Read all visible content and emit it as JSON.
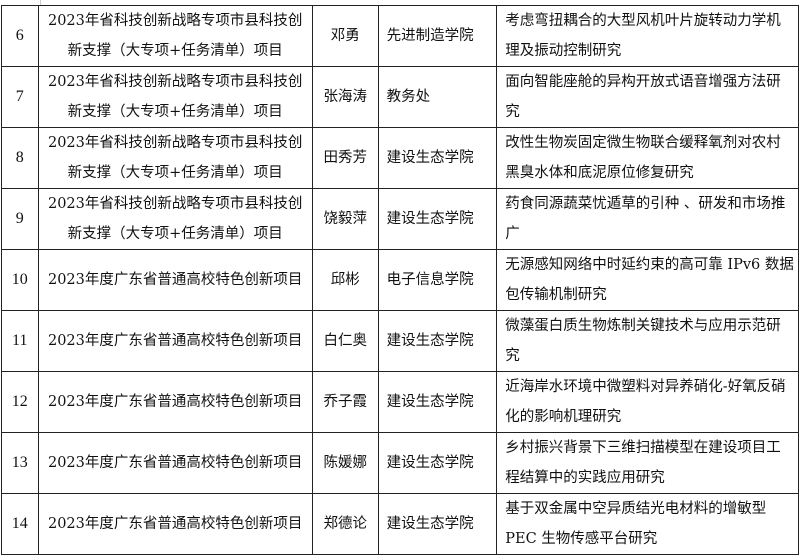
{
  "rows": [
    {
      "no": "6",
      "project": "2023年省科技创新战略专项市县科技创新支撑（大专项+任务清单）项目",
      "name": "邓勇",
      "college": "先进制造学院",
      "topic": "考虑弯扭耦合的大型风机叶片旋转动力学机理及振动控制研究"
    },
    {
      "no": "7",
      "project": "2023年省科技创新战略专项市县科技创新支撑（大专项+任务清单）项目",
      "name": "张海涛",
      "college": "教务处",
      "topic": "面向智能座舱的异构开放式语音增强方法研究"
    },
    {
      "no": "8",
      "project": "2023年省科技创新战略专项市县科技创新支撑（大专项+任务清单）项目",
      "name": "田秀芳",
      "college": "建设生态学院",
      "topic": "改性生物炭固定微生物联合缓释氧剂对农村黑臭水体和底泥原位修复研究"
    },
    {
      "no": "9",
      "project": "2023年省科技创新战略专项市县科技创新支撑（大专项+任务清单）项目",
      "name": "饶毅萍",
      "college": "建设生态学院",
      "topic": "药食同源蔬菜忧遁草的引种 、研发和市场推广"
    },
    {
      "no": "10",
      "project": "2023年度广东省普通高校特色创新项目",
      "name": "邱彬",
      "college": "电子信息学院",
      "topic": "无源感知网络中时延约束的高可靠 IPv6 数据包传输机制研究"
    },
    {
      "no": "11",
      "project": "2023年度广东省普通高校特色创新项目",
      "name": "白仁奥",
      "college": "建设生态学院",
      "topic": "微藻蛋白质生物炼制关键技术与应用示范研究"
    },
    {
      "no": "12",
      "project": "2023年度广东省普通高校特色创新项目",
      "name": "乔子霞",
      "college": "建设生态学院",
      "topic": "近海岸水环境中微塑料对异养硝化-好氧反硝化的影响机理研究"
    },
    {
      "no": "13",
      "project": "2023年度广东省普通高校特色创新项目",
      "name": "陈媛娜",
      "college": "建设生态学院",
      "topic": "乡村振兴背景下三维扫描模型在建设项目工程结算中的实践应用研究"
    },
    {
      "no": "14",
      "project": "2023年度广东省普通高校特色创新项目",
      "name": "郑德论",
      "college": "建设生态学院",
      "topic": "基于双金属中空异质结光电材料的增敏型 PEC 生物传感平台研究"
    }
  ]
}
